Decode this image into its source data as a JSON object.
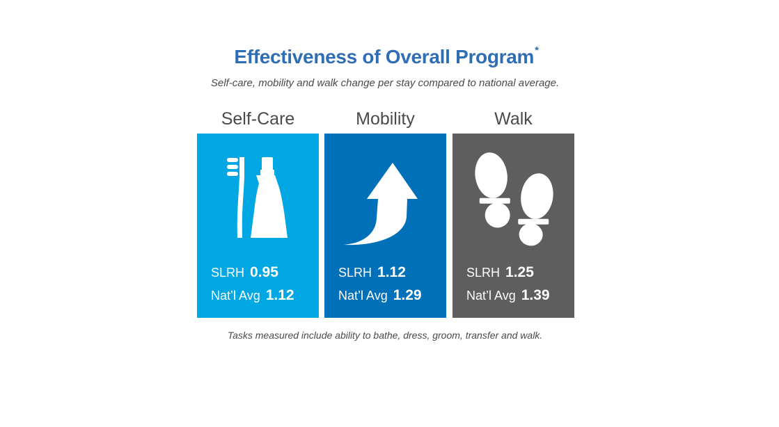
{
  "header": {
    "title": "Effectiveness of Overall Program",
    "title_mark": "*",
    "subtitle": "Self-care, mobility and walk change per stay compared to national average."
  },
  "panels": [
    {
      "label": "Self-Care",
      "color": "#00a7e3",
      "icon": "toothbrush-toothpaste-icon",
      "facility_label": "SLRH",
      "facility_value": "0.95",
      "national_label": "Nat’l Avg",
      "national_value": "1.12"
    },
    {
      "label": "Mobility",
      "color": "#0070b8",
      "icon": "arrow-up-icon",
      "facility_label": "SLRH",
      "facility_value": "1.12",
      "national_label": "Nat’l Avg",
      "national_value": "1.29"
    },
    {
      "label": "Walk",
      "color": "#5e5e5e",
      "icon": "footprints-icon",
      "facility_label": "SLRH",
      "facility_value": "1.25",
      "national_label": "Nat’l Avg",
      "national_value": "1.39"
    }
  ],
  "footnote": "Tasks measured include ability to bathe, dress, groom, transfer and walk."
}
